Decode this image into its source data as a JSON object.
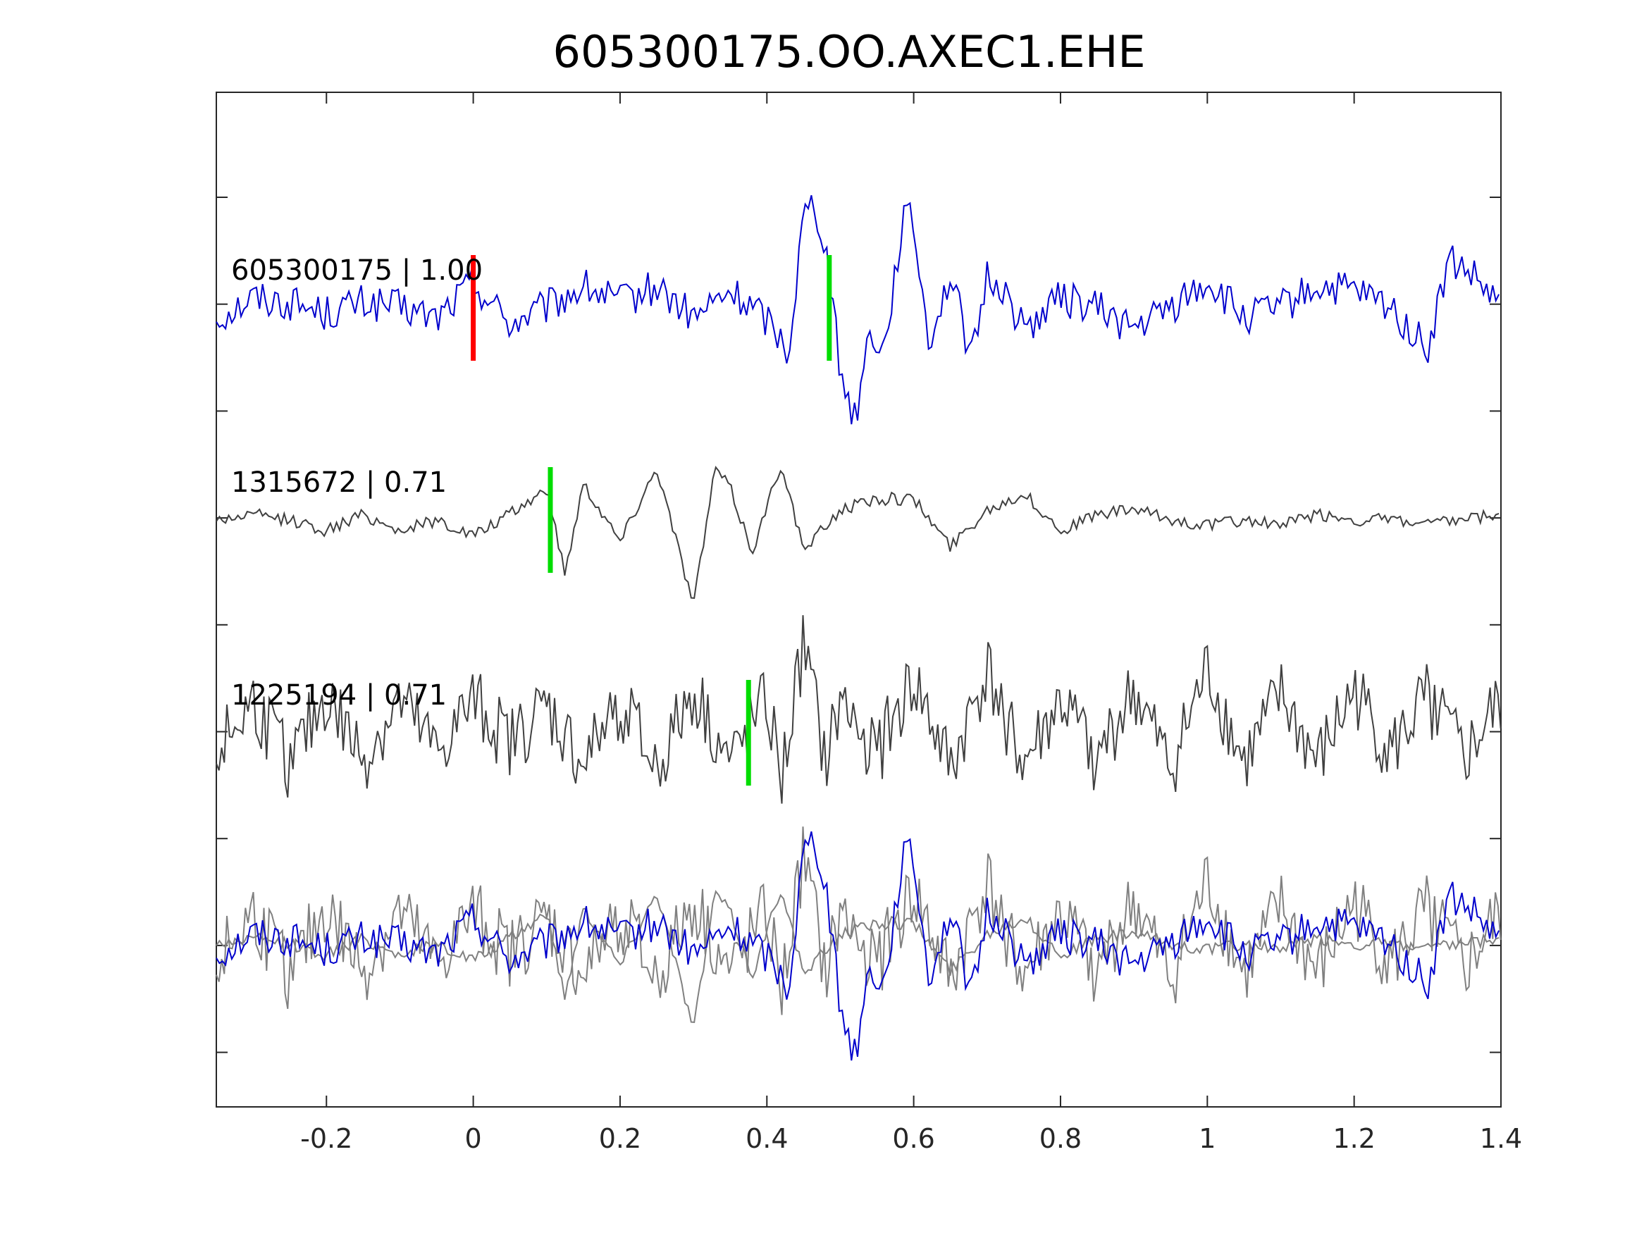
{
  "chart_data": {
    "type": "line",
    "title": "605300175.OO.AXEC1.EHE",
    "xlabel": "",
    "ylabel": "",
    "xlim": [
      -0.35,
      1.4
    ],
    "x_ticks": [
      -0.2,
      0,
      0.2,
      0.4,
      0.6,
      0.8,
      1,
      1.2,
      1.4
    ],
    "x_tick_labels": [
      "-0.2",
      "0",
      "0.2",
      "0.4",
      "0.6",
      "0.8",
      "1",
      "1.2",
      "1.4"
    ],
    "y_tick_count": 9,
    "grid": false,
    "legend": "none",
    "colors": {
      "master": "#0000cc",
      "other": "#404040",
      "overlay_other": "#808080",
      "origin_pick": "#ff0000",
      "phase_pick": "#00dd00"
    },
    "traces": [
      {
        "label": "605300175 | 1.00",
        "color": "#0000cc",
        "red_pick_x": 0.0,
        "green_pick_x": 0.485,
        "samples": [
          [
            -0.35,
            -0.1
          ],
          [
            -0.3,
            0.1
          ],
          [
            -0.25,
            0.05
          ],
          [
            -0.2,
            -0.05
          ],
          [
            -0.15,
            0.05
          ],
          [
            -0.1,
            0.0
          ],
          [
            -0.05,
            -0.1
          ],
          [
            0.0,
            0.25
          ],
          [
            0.05,
            -0.15
          ],
          [
            0.1,
            0.0
          ],
          [
            0.15,
            0.2
          ],
          [
            0.2,
            0.05
          ],
          [
            0.25,
            0.2
          ],
          [
            0.3,
            -0.1
          ],
          [
            0.35,
            0.15
          ],
          [
            0.4,
            -0.1
          ],
          [
            0.43,
            -0.4
          ],
          [
            0.45,
            0.9
          ],
          [
            0.465,
            1.0
          ],
          [
            0.48,
            0.6
          ],
          [
            0.5,
            -0.6
          ],
          [
            0.52,
            -1.05
          ],
          [
            0.54,
            -0.2
          ],
          [
            0.56,
            -0.4
          ],
          [
            0.585,
            0.85
          ],
          [
            0.6,
            0.8
          ],
          [
            0.62,
            -0.3
          ],
          [
            0.65,
            0.3
          ],
          [
            0.68,
            -0.5
          ],
          [
            0.7,
            0.3
          ],
          [
            0.72,
            0.2
          ],
          [
            0.75,
            -0.2
          ],
          [
            0.8,
            0.1
          ],
          [
            0.85,
            0.0
          ],
          [
            0.9,
            -0.2
          ],
          [
            0.95,
            0.0
          ],
          [
            1.0,
            0.25
          ],
          [
            1.05,
            -0.1
          ],
          [
            1.1,
            0.0
          ],
          [
            1.15,
            0.2
          ],
          [
            1.2,
            0.15
          ],
          [
            1.25,
            0.0
          ],
          [
            1.3,
            -0.4
          ],
          [
            1.33,
            0.45
          ],
          [
            1.36,
            0.3
          ],
          [
            1.4,
            0.0
          ]
        ]
      },
      {
        "label": "1315672 | 0.71",
        "color": "#404040",
        "green_pick_x": 0.105,
        "samples": [
          [
            -0.35,
            0.0
          ],
          [
            -0.3,
            0.05
          ],
          [
            -0.25,
            0.0
          ],
          [
            -0.2,
            -0.1
          ],
          [
            -0.15,
            0.05
          ],
          [
            -0.1,
            -0.1
          ],
          [
            -0.05,
            0.0
          ],
          [
            0.0,
            -0.15
          ],
          [
            0.05,
            0.05
          ],
          [
            0.1,
            0.3
          ],
          [
            0.125,
            -0.5
          ],
          [
            0.15,
            0.35
          ],
          [
            0.2,
            -0.2
          ],
          [
            0.25,
            0.5
          ],
          [
            0.3,
            -0.8
          ],
          [
            0.33,
            0.5
          ],
          [
            0.35,
            0.3
          ],
          [
            0.38,
            -0.3
          ],
          [
            0.42,
            0.55
          ],
          [
            0.45,
            -0.3
          ],
          [
            0.5,
            0.1
          ],
          [
            0.55,
            0.2
          ],
          [
            0.6,
            0.2
          ],
          [
            0.65,
            -0.25
          ],
          [
            0.7,
            0.1
          ],
          [
            0.75,
            0.25
          ],
          [
            0.8,
            -0.1
          ],
          [
            0.85,
            0.05
          ],
          [
            0.9,
            0.1
          ],
          [
            0.95,
            0.0
          ],
          [
            1.0,
            -0.05
          ],
          [
            1.05,
            0.0
          ],
          [
            1.1,
            -0.05
          ],
          [
            1.15,
            0.05
          ],
          [
            1.2,
            0.0
          ],
          [
            1.25,
            0.0
          ],
          [
            1.3,
            -0.05
          ],
          [
            1.35,
            0.0
          ],
          [
            1.4,
            0.05
          ]
        ]
      },
      {
        "label": "1225194 | 0.71",
        "color": "#404040",
        "green_pick_x": 0.375,
        "samples": [
          [
            -0.35,
            -0.2
          ],
          [
            -0.3,
            0.3
          ],
          [
            -0.25,
            -0.3
          ],
          [
            -0.2,
            0.35
          ],
          [
            -0.15,
            -0.25
          ],
          [
            -0.1,
            0.3
          ],
          [
            -0.05,
            -0.2
          ],
          [
            0.0,
            0.3
          ],
          [
            0.05,
            -0.1
          ],
          [
            0.1,
            0.25
          ],
          [
            0.15,
            -0.3
          ],
          [
            0.2,
            0.3
          ],
          [
            0.25,
            -0.35
          ],
          [
            0.3,
            0.4
          ],
          [
            0.35,
            -0.3
          ],
          [
            0.4,
            0.3
          ],
          [
            0.42,
            -0.45
          ],
          [
            0.45,
            0.85
          ],
          [
            0.48,
            -0.3
          ],
          [
            0.5,
            0.3
          ],
          [
            0.55,
            -0.2
          ],
          [
            0.6,
            0.5
          ],
          [
            0.65,
            -0.35
          ],
          [
            0.7,
            0.6
          ],
          [
            0.75,
            -0.3
          ],
          [
            0.8,
            0.3
          ],
          [
            0.85,
            -0.25
          ],
          [
            0.9,
            0.4
          ],
          [
            0.95,
            -0.35
          ],
          [
            1.0,
            0.6
          ],
          [
            1.05,
            -0.3
          ],
          [
            1.1,
            0.35
          ],
          [
            1.15,
            -0.3
          ],
          [
            1.2,
            0.4
          ],
          [
            1.25,
            -0.2
          ],
          [
            1.3,
            0.35
          ],
          [
            1.35,
            -0.25
          ],
          [
            1.4,
            0.3
          ]
        ]
      }
    ]
  }
}
